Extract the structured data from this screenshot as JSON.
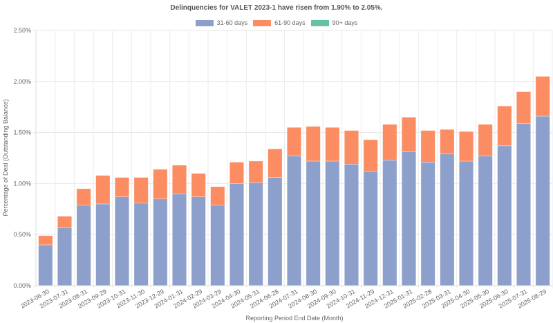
{
  "chart_data": {
    "type": "bar",
    "stacked": true,
    "title": "Delinquencies for VALET 2023-1 have risen from 1.90% to 2.05%.",
    "xlabel": "Reporting Period End Date (Month)",
    "ylabel": "Percentage of Deal (Outstanding Balance)",
    "ylim": [
      0,
      2.5
    ],
    "yticks": [
      "0.00%",
      "0.50%",
      "1.00%",
      "1.50%",
      "2.00%",
      "2.50%"
    ],
    "ytick_values": [
      0,
      0.5,
      1.0,
      1.5,
      2.0,
      2.5
    ],
    "grid": true,
    "legend_position": "top-center",
    "categories": [
      "2023-06-30",
      "2023-07-31",
      "2023-08-31",
      "2023-09-29",
      "2023-10-31",
      "2023-11-30",
      "2023-12-29",
      "2024-01-31",
      "2024-02-29",
      "2024-03-29",
      "2024-04-30",
      "2024-05-31",
      "2024-06-28",
      "2024-07-31",
      "2024-08-30",
      "2024-09-30",
      "2024-10-31",
      "2024-11-29",
      "2024-12-31",
      "2025-01-31",
      "2025-02-28",
      "2025-03-31",
      "2025-04-30",
      "2025-05-30",
      "2025-06-30",
      "2025-07-31",
      "2025-08-29"
    ],
    "series": [
      {
        "name": "31-60 days",
        "color": "#8da0cb",
        "values": [
          0.4,
          0.57,
          0.79,
          0.8,
          0.87,
          0.81,
          0.85,
          0.9,
          0.87,
          0.79,
          1.0,
          1.01,
          1.06,
          1.27,
          1.22,
          1.22,
          1.19,
          1.12,
          1.23,
          1.31,
          1.21,
          1.29,
          1.22,
          1.27,
          1.37,
          1.59,
          1.66
        ]
      },
      {
        "name": "61-90 days",
        "color": "#fc8d62",
        "values": [
          0.09,
          0.11,
          0.16,
          0.28,
          0.19,
          0.25,
          0.29,
          0.28,
          0.23,
          0.18,
          0.21,
          0.21,
          0.28,
          0.28,
          0.34,
          0.33,
          0.33,
          0.31,
          0.35,
          0.34,
          0.31,
          0.24,
          0.29,
          0.31,
          0.39,
          0.31,
          0.39
        ]
      },
      {
        "name": "90+ days",
        "color": "#66c2a5",
        "values": [
          0,
          0,
          0,
          0,
          0,
          0,
          0,
          0,
          0,
          0,
          0,
          0,
          0,
          0,
          0,
          0,
          0,
          0,
          0,
          0,
          0,
          0,
          0,
          0,
          0,
          0,
          0
        ]
      }
    ]
  }
}
